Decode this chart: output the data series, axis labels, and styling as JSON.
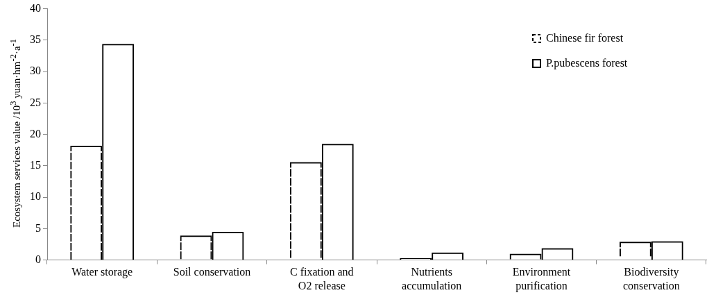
{
  "chart_data": {
    "type": "bar",
    "ylabel": "Ecosystem services value /10$^{3}$ yuan·hm$^{-2}$·a$^{-1}$",
    "categories": [
      "Water storage",
      "Soil conservation",
      "C fixation and O2 release",
      "Nutrients accumulation",
      "Environment purification",
      "Biodiversity conservation"
    ],
    "series": [
      {
        "name": "Chinese fir forest",
        "color": "#000000",
        "line_style": "dashed",
        "values": [
          18.2,
          3.9,
          15.6,
          0.3,
          1.0,
          2.9
        ]
      },
      {
        "name": "P.pubescens forest",
        "color": "#000000",
        "line_style": "solid",
        "values": [
          34.4,
          4.5,
          18.5,
          1.2,
          1.9,
          3.0
        ]
      }
    ],
    "ylim": [
      0,
      40
    ],
    "yticks": [
      0,
      5,
      10,
      15,
      20,
      25,
      30,
      35,
      40
    ],
    "grid": false,
    "legend": "top right"
  }
}
